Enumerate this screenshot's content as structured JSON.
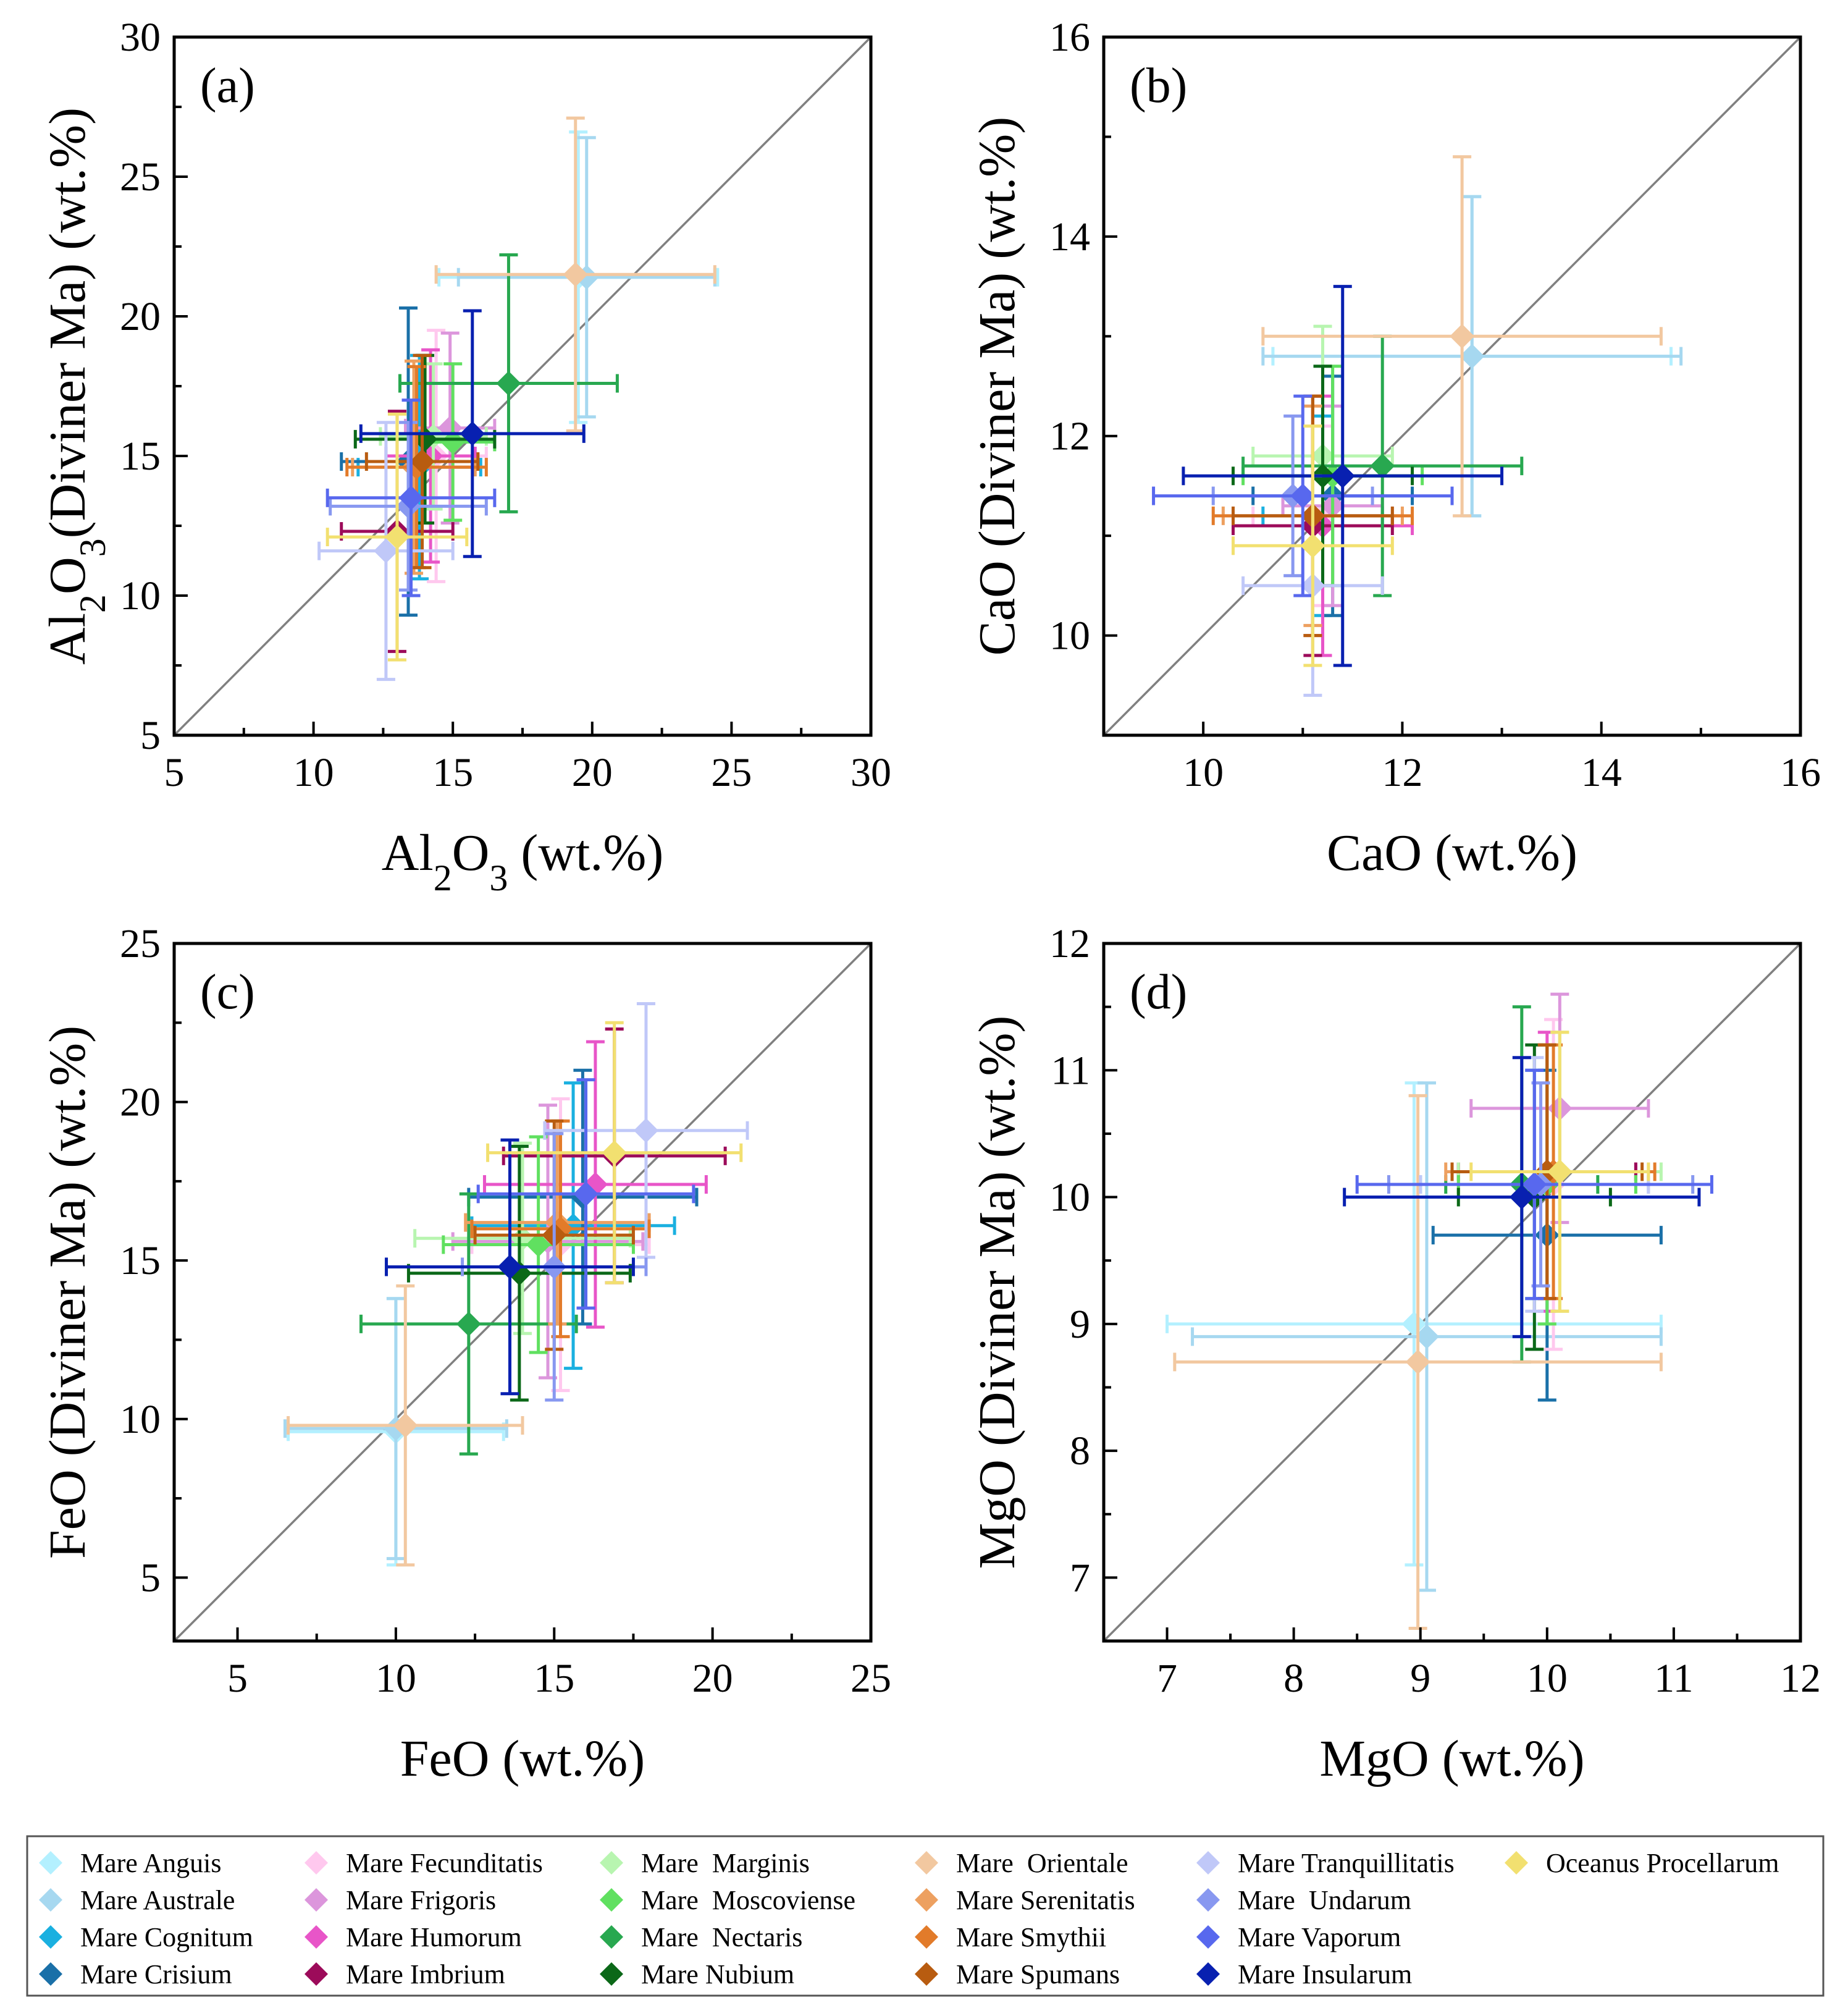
{
  "figure": {
    "legend": [
      {
        "name": "Mare Anguis",
        "color": "#b3f0ff"
      },
      {
        "name": "Mare Australe",
        "color": "#a6d8f0"
      },
      {
        "name": "Mare Cognitum",
        "color": "#1ab0e0"
      },
      {
        "name": "Mare Crisium",
        "color": "#1a70a8"
      },
      {
        "name": "Mare Fecunditatis",
        "color": "#ffc8ee"
      },
      {
        "name": "Mare Frigoris",
        "color": "#dc96dc"
      },
      {
        "name": "Mare Humorum",
        "color": "#e855c8"
      },
      {
        "name": "Mare Imbrium",
        "color": "#9c0b5a"
      },
      {
        "name": "Mare  Marginis",
        "color": "#b8f5b0"
      },
      {
        "name": "Mare  Moscoviense",
        "color": "#60e060"
      },
      {
        "name": "Mare  Nectaris",
        "color": "#28a850"
      },
      {
        "name": "Mare Nubium",
        "color": "#0b6818"
      },
      {
        "name": "Mare  Orientale",
        "color": "#f2c8a0"
      },
      {
        "name": "Mare Serenitatis",
        "color": "#eda060"
      },
      {
        "name": "Mare Smythii",
        "color": "#e27b2a"
      },
      {
        "name": "Mare Spumans",
        "color": "#b85c10"
      },
      {
        "name": "Mare Tranquillitatis",
        "color": "#c0c8f8"
      },
      {
        "name": "Mare  Undarum",
        "color": "#8898f0"
      },
      {
        "name": "Mare Vaporum",
        "color": "#5868ee"
      },
      {
        "name": "Mare Insularum",
        "color": "#0820b0"
      },
      {
        "name": "Oceanus Procellarum",
        "color": "#f2e070"
      }
    ]
  },
  "chart_data": [
    {
      "type": "scatter",
      "label": "(a)",
      "title": "",
      "xlabel": {
        "main": "Al",
        "sub1": "2",
        "mid": "O",
        "sub2": "3",
        "rest": " (wt.%)"
      },
      "ylabel": {
        "main": "Al",
        "sub1": "2",
        "mid": "O",
        "sub2": "3",
        "rest": "(Diviner Ma) (wt.%)"
      },
      "xlim": [
        5,
        30
      ],
      "ylim": [
        5,
        30
      ],
      "xticks": [
        "5",
        "10",
        "15",
        "20",
        "25",
        "30"
      ],
      "yticks": [
        "5",
        "10",
        "15",
        "20",
        "25",
        "30"
      ],
      "reference_line": "1:1",
      "points": [
        {
          "series": "Mare Anguis",
          "x": 19.5,
          "y": 21.4,
          "xerr": 5.0,
          "yerr": 5.2
        },
        {
          "series": "Mare Australe",
          "x": 19.8,
          "y": 21.4,
          "xerr": 4.6,
          "yerr": 5.0
        },
        {
          "series": "Mare Cognitum",
          "x": 13.8,
          "y": 14.6,
          "xerr": 2.2,
          "yerr": 4.0
        },
        {
          "series": "Mare Crisium",
          "x": 13.4,
          "y": 14.8,
          "xerr": 2.4,
          "yerr": 5.5
        },
        {
          "series": "Mare Fecunditatis",
          "x": 14.4,
          "y": 15.0,
          "xerr": 1.8,
          "yerr": 4.5
        },
        {
          "series": "Mare Frigoris",
          "x": 14.9,
          "y": 16.0,
          "xerr": 1.6,
          "yerr": 3.4
        },
        {
          "series": "Mare Humorum",
          "x": 14.2,
          "y": 15.0,
          "xerr": 1.6,
          "yerr": 3.8
        },
        {
          "series": "Mare Imbrium",
          "x": 13.0,
          "y": 12.3,
          "xerr": 2.0,
          "yerr": 4.3
        },
        {
          "series": "Mare  Marginis",
          "x": 14.3,
          "y": 15.7,
          "xerr": 1.9,
          "yerr": 2.6
        },
        {
          "series": "Mare  Moscoviense",
          "x": 15.0,
          "y": 15.5,
          "xerr": 1.5,
          "yerr": 2.8
        },
        {
          "series": "Mare  Nectaris",
          "x": 17.0,
          "y": 17.6,
          "xerr": 3.9,
          "yerr": 4.6
        },
        {
          "series": "Mare Nubium",
          "x": 14.0,
          "y": 15.6,
          "xerr": 2.5,
          "yerr": 3.0
        },
        {
          "series": "Mare  Orientale",
          "x": 19.4,
          "y": 21.5,
          "xerr": 5.0,
          "yerr": 5.6
        },
        {
          "series": "Mare Serenitatis",
          "x": 13.6,
          "y": 14.6,
          "xerr": 2.2,
          "yerr": 3.8
        },
        {
          "series": "Mare Smythii",
          "x": 13.7,
          "y": 14.6,
          "xerr": 2.5,
          "yerr": 3.6
        },
        {
          "series": "Mare Spumans",
          "x": 13.9,
          "y": 14.8,
          "xerr": 2.0,
          "yerr": 3.8
        },
        {
          "series": "Mare Tranquillitatis",
          "x": 12.6,
          "y": 11.6,
          "xerr": 2.4,
          "yerr": 4.6
        },
        {
          "series": "Mare  Undarum",
          "x": 13.4,
          "y": 13.2,
          "xerr": 2.8,
          "yerr": 3.0
        },
        {
          "series": "Mare Vaporum",
          "x": 13.5,
          "y": 13.5,
          "xerr": 3.0,
          "yerr": 3.5
        },
        {
          "series": "Mare Insularum",
          "x": 15.7,
          "y": 15.8,
          "xerr": 4.0,
          "yerr": 4.4
        },
        {
          "series": "Oceanus Procellarum",
          "x": 13.0,
          "y": 12.1,
          "xerr": 2.5,
          "yerr": 4.4
        }
      ]
    },
    {
      "type": "scatter",
      "label": "(b)",
      "title": "",
      "xlabel": {
        "main": "CaO (wt.%)"
      },
      "ylabel": {
        "main": "CaO (Diviner Ma) (wt.%)"
      },
      "xlim": [
        9,
        16
      ],
      "ylim": [
        9,
        16
      ],
      "xticks": [
        "10",
        "12",
        "14",
        "16"
      ],
      "yticks": [
        "10",
        "12",
        "14",
        "16"
      ],
      "reference_line": "1:1",
      "points": [
        {
          "series": "Mare Anguis",
          "x": 12.7,
          "y": 12.8,
          "xerr": 2.0,
          "yerr": 1.6
        },
        {
          "series": "Mare Australe",
          "x": 12.7,
          "y": 12.8,
          "xerr": 2.1,
          "yerr": 1.6
        },
        {
          "series": "Mare Cognitum",
          "x": 11.2,
          "y": 11.2,
          "xerr": 0.6,
          "yerr": 1.0
        },
        {
          "series": "Mare Crisium",
          "x": 11.3,
          "y": 11.4,
          "xerr": 0.8,
          "yerr": 1.2
        },
        {
          "series": "Mare Fecunditatis",
          "x": 11.2,
          "y": 11.2,
          "xerr": 0.7,
          "yerr": 0.9
        },
        {
          "series": "Mare Frigoris",
          "x": 11.3,
          "y": 11.3,
          "xerr": 0.5,
          "yerr": 1.0
        },
        {
          "series": "Mare Humorum",
          "x": 11.2,
          "y": 11.1,
          "xerr": 0.9,
          "yerr": 1.3
        },
        {
          "series": "Mare Imbrium",
          "x": 11.1,
          "y": 11.1,
          "xerr": 0.8,
          "yerr": 1.3
        },
        {
          "series": "Mare  Marginis",
          "x": 11.2,
          "y": 11.8,
          "xerr": 0.7,
          "yerr": 1.3
        },
        {
          "series": "Mare  Moscoviense",
          "x": 11.3,
          "y": 11.6,
          "xerr": 0.9,
          "yerr": 1.1
        },
        {
          "series": "Mare  Nectaris",
          "x": 11.8,
          "y": 11.7,
          "xerr": 1.4,
          "yerr": 1.3
        },
        {
          "series": "Mare Nubium",
          "x": 11.2,
          "y": 11.6,
          "xerr": 0.9,
          "yerr": 1.1
        },
        {
          "series": "Mare  Orientale",
          "x": 12.6,
          "y": 13.0,
          "xerr": 2.0,
          "yerr": 1.8
        },
        {
          "series": "Mare Serenitatis",
          "x": 11.1,
          "y": 11.2,
          "xerr": 0.9,
          "yerr": 1.1
        },
        {
          "series": "Mare Smythii",
          "x": 11.1,
          "y": 11.2,
          "xerr": 1.0,
          "yerr": 1.2
        },
        {
          "series": "Mare Spumans",
          "x": 11.1,
          "y": 11.2,
          "xerr": 0.8,
          "yerr": 1.2
        },
        {
          "series": "Mare Tranquillitatis",
          "x": 11.1,
          "y": 10.5,
          "xerr": 0.7,
          "yerr": 1.1
        },
        {
          "series": "Mare  Undarum",
          "x": 10.9,
          "y": 11.4,
          "xerr": 0.8,
          "yerr": 0.8
        },
        {
          "series": "Mare Vaporum",
          "x": 11.0,
          "y": 11.4,
          "xerr": 1.5,
          "yerr": 1.0
        },
        {
          "series": "Mare Insularum",
          "x": 11.4,
          "y": 11.6,
          "xerr": 1.6,
          "yerr": 1.9
        },
        {
          "series": "Oceanus Procellarum",
          "x": 11.1,
          "y": 10.9,
          "xerr": 0.8,
          "yerr": 1.2
        }
      ]
    },
    {
      "type": "scatter",
      "label": "(c)",
      "title": "",
      "xlabel": {
        "main": "FeO (wt.%)"
      },
      "ylabel": {
        "main": "FeO (Diviner Ma) (wt.%)"
      },
      "xlim": [
        3,
        25
      ],
      "ylim": [
        3,
        25
      ],
      "xticks": [
        "5",
        "10",
        "15",
        "20",
        "25"
      ],
      "yticks": [
        "5",
        "10",
        "15",
        "20",
        "25"
      ],
      "reference_line": "1:1",
      "points": [
        {
          "series": "Mare Anguis",
          "x": 10.0,
          "y": 9.6,
          "xerr": 3.4,
          "yerr": 4.2
        },
        {
          "series": "Mare Australe",
          "x": 10.0,
          "y": 9.7,
          "xerr": 3.5,
          "yerr": 4.1
        },
        {
          "series": "Mare Cognitum",
          "x": 15.6,
          "y": 16.1,
          "xerr": 3.2,
          "yerr": 4.5
        },
        {
          "series": "Mare Crisium",
          "x": 15.9,
          "y": 17.0,
          "xerr": 3.6,
          "yerr": 4.0
        },
        {
          "series": "Mare Fecunditatis",
          "x": 15.2,
          "y": 15.5,
          "xerr": 2.8,
          "yerr": 4.6
        },
        {
          "series": "Mare Frigoris",
          "x": 14.8,
          "y": 15.6,
          "xerr": 3.0,
          "yerr": 4.3
        },
        {
          "series": "Mare Humorum",
          "x": 16.3,
          "y": 17.4,
          "xerr": 3.5,
          "yerr": 4.5
        },
        {
          "series": "Mare Imbrium",
          "x": 16.9,
          "y": 18.3,
          "xerr": 3.5,
          "yerr": 4.0
        },
        {
          "series": "Mare  Marginis",
          "x": 14.0,
          "y": 15.7,
          "xerr": 3.4,
          "yerr": 3.0
        },
        {
          "series": "Mare  Moscoviense",
          "x": 14.5,
          "y": 15.5,
          "xerr": 3.0,
          "yerr": 3.4
        },
        {
          "series": "Mare  Nectaris",
          "x": 12.3,
          "y": 13.0,
          "xerr": 3.4,
          "yerr": 4.1
        },
        {
          "series": "Mare Nubium",
          "x": 13.9,
          "y": 14.6,
          "xerr": 3.5,
          "yerr": 4.0
        },
        {
          "series": "Mare  Orientale",
          "x": 10.3,
          "y": 9.8,
          "xerr": 3.7,
          "yerr": 4.4
        },
        {
          "series": "Mare Serenitatis",
          "x": 15.1,
          "y": 16.2,
          "xerr": 2.9,
          "yerr": 3.2
        },
        {
          "series": "Mare Smythii",
          "x": 15.2,
          "y": 16.0,
          "xerr": 2.8,
          "yerr": 3.4
        },
        {
          "series": "Mare Spumans",
          "x": 15.0,
          "y": 15.8,
          "xerr": 2.5,
          "yerr": 3.6
        },
        {
          "series": "Mare Tranquillitatis",
          "x": 17.9,
          "y": 19.1,
          "xerr": 3.2,
          "yerr": 4.0
        },
        {
          "series": "Mare  Undarum",
          "x": 15.0,
          "y": 14.8,
          "xerr": 2.9,
          "yerr": 4.2
        },
        {
          "series": "Mare Vaporum",
          "x": 16.0,
          "y": 17.1,
          "xerr": 3.4,
          "yerr": 3.6
        },
        {
          "series": "Mare Insularum",
          "x": 13.6,
          "y": 14.8,
          "xerr": 3.9,
          "yerr": 4.0
        },
        {
          "series": "Oceanus Procellarum",
          "x": 16.9,
          "y": 18.4,
          "xerr": 4.0,
          "yerr": 4.1
        }
      ]
    },
    {
      "type": "scatter",
      "label": "(d)",
      "title": "",
      "xlabel": {
        "main": "MgO (wt.%)"
      },
      "ylabel": {
        "main": "MgO (Diviner Ma) (wt.%)"
      },
      "xlim": [
        6.5,
        12
      ],
      "ylim": [
        6.5,
        12
      ],
      "xticks": [
        "7",
        "8",
        "9",
        "10",
        "11",
        "12"
      ],
      "yticks": [
        "7",
        "8",
        "9",
        "10",
        "11",
        "12"
      ],
      "reference_line": "1:1",
      "points": [
        {
          "series": "Mare Anguis",
          "x": 8.95,
          "y": 9.0,
          "xerr": 1.95,
          "yerr": 1.9
        },
        {
          "series": "Mare Australe",
          "x": 9.05,
          "y": 8.9,
          "xerr": 1.85,
          "yerr": 2.0
        },
        {
          "series": "Mare Cognitum",
          "x": 9.9,
          "y": 10.1,
          "xerr": 0.9,
          "yerr": 0.9
        },
        {
          "series": "Mare Crisium",
          "x": 10.0,
          "y": 9.7,
          "xerr": 0.9,
          "yerr": 1.3
        },
        {
          "series": "Mare Fecunditatis",
          "x": 10.05,
          "y": 10.1,
          "xerr": 0.75,
          "yerr": 1.3
        },
        {
          "series": "Mare Frigoris",
          "x": 10.1,
          "y": 10.7,
          "xerr": 0.7,
          "yerr": 0.9
        },
        {
          "series": "Mare Humorum",
          "x": 10.0,
          "y": 10.2,
          "xerr": 0.7,
          "yerr": 1.1
        },
        {
          "series": "Mare Imbrium",
          "x": 10.0,
          "y": 10.2,
          "xerr": 0.7,
          "yerr": 1.0
        },
        {
          "series": "Mare  Marginis",
          "x": 10.1,
          "y": 10.2,
          "xerr": 0.8,
          "yerr": 1.1
        },
        {
          "series": "Mare  Moscoviense",
          "x": 10.0,
          "y": 10.1,
          "xerr": 0.7,
          "yerr": 1.1
        },
        {
          "series": "Mare  Nectaris",
          "x": 9.8,
          "y": 10.1,
          "xerr": 0.6,
          "yerr": 1.4
        },
        {
          "series": "Mare Nubium",
          "x": 9.9,
          "y": 10.0,
          "xerr": 0.6,
          "yerr": 1.2
        },
        {
          "series": "Mare  Orientale",
          "x": 8.98,
          "y": 8.7,
          "xerr": 1.92,
          "yerr": 2.1
        },
        {
          "series": "Mare Serenitatis",
          "x": 10.0,
          "y": 10.2,
          "xerr": 0.8,
          "yerr": 1.0
        },
        {
          "series": "Mare Smythii",
          "x": 10.05,
          "y": 10.2,
          "xerr": 0.8,
          "yerr": 1.0
        },
        {
          "series": "Mare Spumans",
          "x": 10.0,
          "y": 10.2,
          "xerr": 0.75,
          "yerr": 1.0
        },
        {
          "series": "Mare Tranquillitatis",
          "x": 9.9,
          "y": 10.1,
          "xerr": 0.9,
          "yerr": 1.0
        },
        {
          "series": "Mare  Undarum",
          "x": 9.95,
          "y": 10.1,
          "xerr": 1.2,
          "yerr": 0.8
        },
        {
          "series": "Mare Vaporum",
          "x": 9.9,
          "y": 10.1,
          "xerr": 1.4,
          "yerr": 0.9
        },
        {
          "series": "Mare Insularum",
          "x": 9.8,
          "y": 10.0,
          "xerr": 1.4,
          "yerr": 1.1
        },
        {
          "series": "Oceanus Procellarum",
          "x": 10.1,
          "y": 10.2,
          "xerr": 0.7,
          "yerr": 1.1
        }
      ]
    }
  ]
}
